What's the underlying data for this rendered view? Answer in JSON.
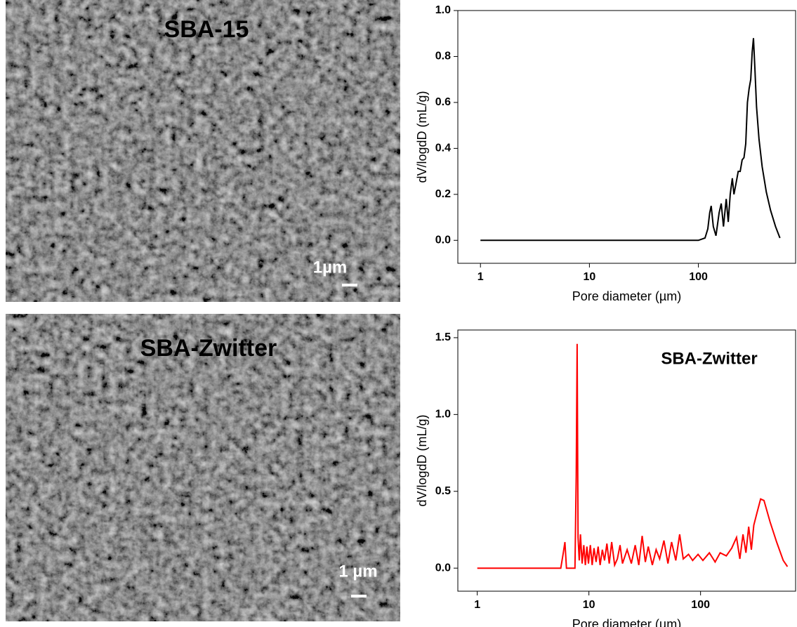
{
  "images": [
    {
      "label": "SBA-15",
      "label_color": "#ffffff",
      "scale_bar": "1µm"
    },
    {
      "label": "SBA-Zwitter",
      "label_color": "#ff0000",
      "scale_bar": "1 µm"
    }
  ],
  "chart_data": [
    {
      "type": "line",
      "x_label": "Pore diameter (µm)",
      "y_label": "dV/logdD (mL/g)",
      "log_x": true,
      "x": [
        1,
        100,
        115,
        122,
        127,
        131,
        137,
        145,
        155,
        162,
        170,
        180,
        188,
        196,
        205,
        212,
        222,
        232,
        242,
        252,
        262,
        272,
        282,
        292,
        302,
        312,
        320,
        330,
        342,
        360,
        385,
        420,
        460,
        510,
        560
      ],
      "series": [
        {
          "name": "SBA-15",
          "color": "#000000",
          "values": [
            0,
            0,
            0.01,
            0.05,
            0.12,
            0.15,
            0.06,
            0.02,
            0.12,
            0.16,
            0.06,
            0.18,
            0.08,
            0.2,
            0.27,
            0.2,
            0.25,
            0.3,
            0.3,
            0.35,
            0.36,
            0.42,
            0.6,
            0.66,
            0.7,
            0.82,
            0.88,
            0.75,
            0.58,
            0.44,
            0.32,
            0.21,
            0.13,
            0.06,
            0.01
          ]
        }
      ],
      "xlim": [
        0.62,
        780
      ],
      "ylim": [
        -0.1,
        1.0
      ],
      "xticks": [
        1,
        10,
        100
      ],
      "yticks": [
        {
          "value": 0,
          "label": "0.0"
        },
        0.2,
        0.4,
        0.6,
        0.8,
        {
          "value": 1,
          "label": "1.0"
        }
      ]
    },
    {
      "type": "line",
      "x_label": "Pore diameter (µm)",
      "y_label": "dV/logdD (mL/g)",
      "log_x": true,
      "annotation": "SBA-Zwitter",
      "x": [
        1,
        5.6,
        5.9,
        6.1,
        6.3,
        7.5,
        7.7,
        7.85,
        8.0,
        8.2,
        8.4,
        8.7,
        9.0,
        9.3,
        9.6,
        9.9,
        10.3,
        10.7,
        11.1,
        11.6,
        12.1,
        12.6,
        13.2,
        13.8,
        14.5,
        15.2,
        16,
        17,
        18,
        19,
        20,
        22,
        24,
        26,
        28,
        30,
        32,
        34,
        37,
        40,
        43,
        47,
        51,
        55,
        60,
        65,
        70,
        78,
        85,
        95,
        105,
        120,
        135,
        150,
        170,
        190,
        210,
        225,
        240,
        255,
        270,
        285,
        300,
        320,
        345,
        370,
        420,
        480,
        550,
        600
      ],
      "series": [
        {
          "name": "SBA-Zwitter",
          "color": "#ff0000",
          "values": [
            0,
            0,
            0.1,
            0.17,
            0,
            0,
            0.6,
            1.46,
            0.2,
            0.05,
            0.22,
            0.03,
            0.15,
            0.02,
            0.14,
            0.03,
            0.15,
            0.02,
            0.13,
            0.04,
            0.14,
            0.02,
            0.12,
            0.05,
            0.16,
            0.03,
            0.17,
            0.02,
            0.06,
            0.15,
            0.03,
            0.12,
            0.03,
            0.15,
            0.02,
            0.21,
            0.04,
            0.14,
            0.02,
            0.12,
            0.06,
            0.18,
            0.03,
            0.17,
            0.05,
            0.22,
            0.06,
            0.09,
            0.05,
            0.09,
            0.05,
            0.1,
            0.04,
            0.1,
            0.08,
            0.13,
            0.2,
            0.06,
            0.22,
            0.1,
            0.27,
            0.12,
            0.28,
            0.36,
            0.45,
            0.44,
            0.3,
            0.17,
            0.05,
            0.01
          ]
        }
      ],
      "xlim": [
        0.67,
        710
      ],
      "ylim": [
        -0.15,
        1.55
      ],
      "xticks": [
        1,
        10,
        100
      ],
      "yticks": [
        {
          "value": 0,
          "label": "0.0"
        },
        0.5,
        {
          "value": 1,
          "label": "1.0"
        },
        1.5
      ]
    }
  ]
}
